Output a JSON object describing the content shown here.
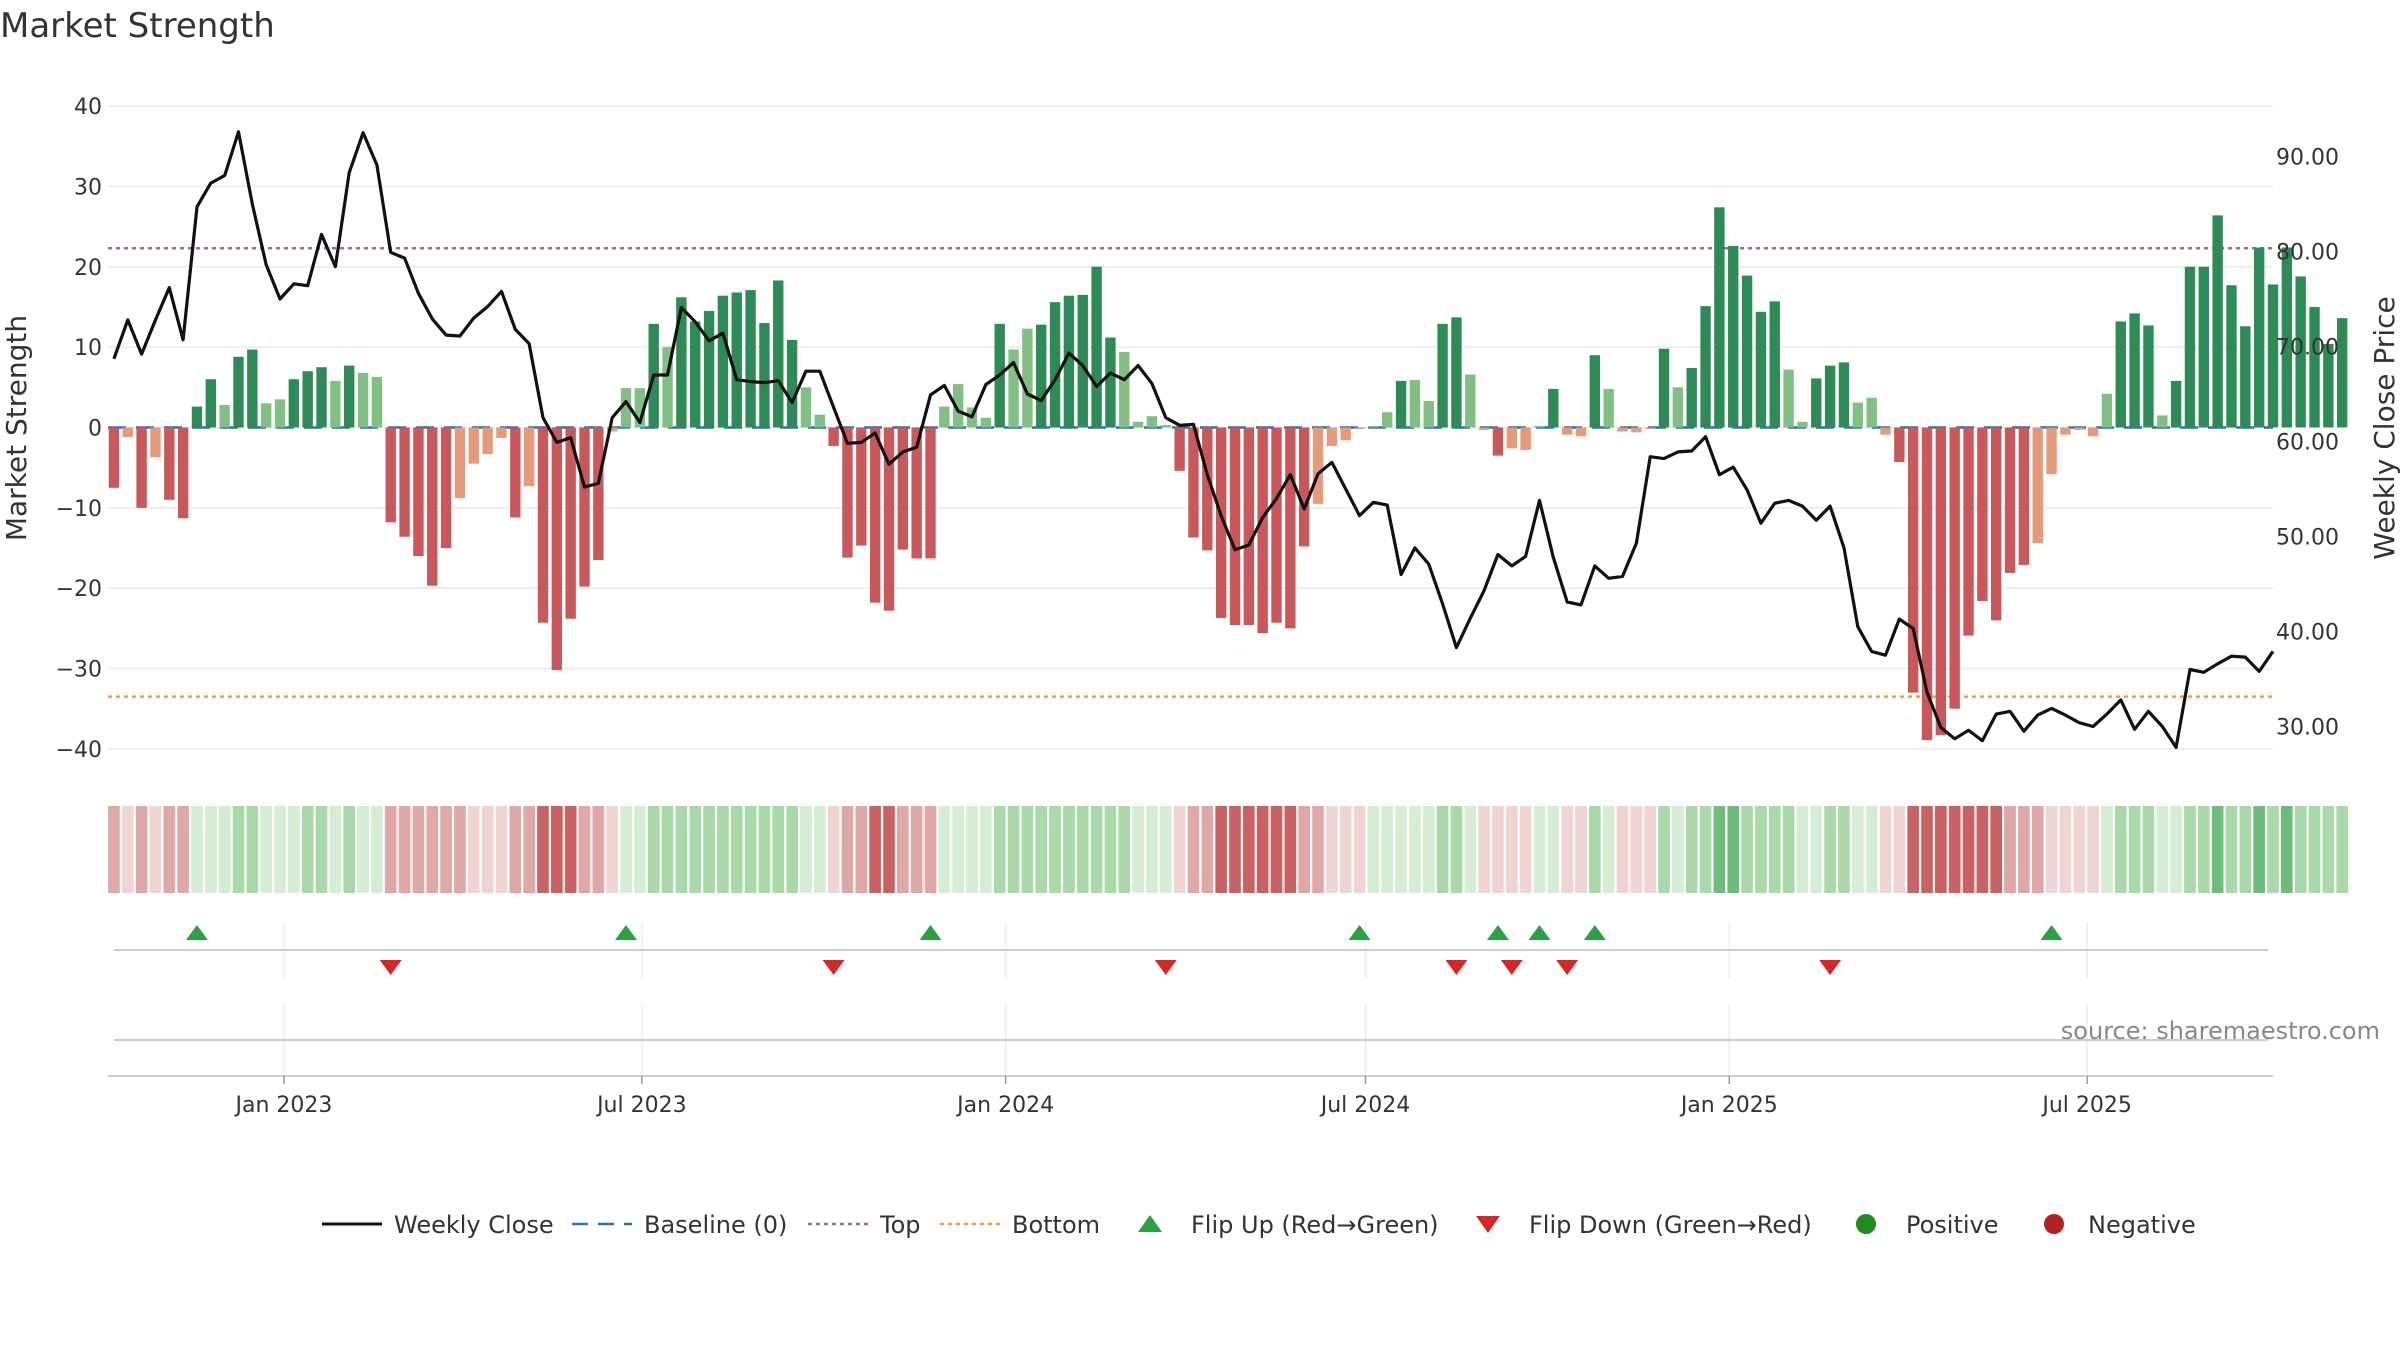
{
  "chart_data": {
    "type": "bar",
    "title": "Market Strength",
    "ylabel": "Market Strength",
    "y2label": "Weekly Close Price",
    "ylim": [
      -43,
      42
    ],
    "y2lim": [
      25.1,
      97.0
    ],
    "yticks": [
      "40",
      "30",
      "20",
      "10",
      "0",
      "−10",
      "−20",
      "−30",
      "−40"
    ],
    "y2ticks": [
      "90.00",
      "80.00",
      "70.00",
      "60.00",
      "50.00",
      "40.00",
      "30.00"
    ],
    "xticks": [
      "Jan 2023",
      "Jul 2023",
      "Jan 2024",
      "Jul 2024",
      "Jan 2025",
      "Jul 2025"
    ],
    "start_date": "2022-10-07",
    "x_end_date": "2025-10-03",
    "top_line": 22.3,
    "bottom_line": -33.5,
    "strength": [
      -7.5,
      -1.2,
      -10,
      -3.7,
      -9,
      -11.3,
      2.6,
      6,
      2.8,
      8.8,
      9.7,
      3,
      3.5,
      6,
      7,
      7.5,
      5.8,
      7.7,
      6.8,
      6.3,
      -11.8,
      -13.6,
      -16,
      -19.7,
      -15,
      -8.8,
      -4.5,
      -3.3,
      -1.3,
      -11.2,
      -7.3,
      -24.3,
      -30.2,
      -23.8,
      -19.8,
      -16.5,
      -0.5,
      4.9,
      4.9,
      12.9,
      10,
      16.2,
      13.2,
      14.5,
      16.4,
      16.8,
      17.1,
      13,
      18.3,
      10.9,
      5,
      1.6,
      -2.3,
      -16.2,
      -14.7,
      -21.8,
      -22.8,
      -15.2,
      -16.3,
      -16.3,
      2.6,
      5.4,
      2.5,
      1.2,
      12.9,
      9.7,
      12.3,
      12.8,
      15.6,
      16.4,
      16.5,
      20,
      11.2,
      9.4,
      0.7,
      1.4,
      0.3,
      -5.4,
      -13.7,
      -15.3,
      -23.7,
      -24.6,
      -24.6,
      -25.6,
      -24.3,
      -25,
      -14.8,
      -9.5,
      -2.3,
      -1.6,
      -0.2,
      0.2,
      1.9,
      5.8,
      5.9,
      3.3,
      12.9,
      13.7,
      6.6,
      -0.3,
      -3.5,
      -2.6,
      -2.8,
      0.2,
      4.8,
      -0.9,
      -1.1,
      9,
      4.8,
      -0.5,
      -0.6,
      -0.2,
      9.8,
      5,
      7.4,
      15.1,
      27.4,
      22.6,
      18.9,
      14.4,
      15.7,
      7.2,
      0.7,
      6.1,
      7.7,
      8.1,
      3.1,
      3.7,
      -0.9,
      -4.3,
      -33,
      -38.9,
      -38.3,
      -35,
      -25.9,
      -21.6,
      -24,
      -18.1,
      -17.1,
      -14.4,
      -5.8,
      -0.9,
      -0.3,
      -1.1,
      4.2,
      13.2,
      14.2,
      12.7,
      1.5,
      5.8,
      20,
      20,
      26.4,
      17.7,
      12.6,
      22.4,
      17.8,
      22.4,
      18.8,
      15,
      10.4,
      13.6
    ],
    "strength_intensity": [
      1,
      0,
      1,
      0,
      1,
      1,
      1,
      2,
      0,
      2,
      2,
      0,
      0,
      1,
      1,
      1,
      0,
      1,
      0,
      0,
      1,
      1,
      1,
      2,
      1,
      0,
      0,
      0,
      0,
      1,
      0,
      2,
      2,
      2,
      1,
      1,
      0,
      0,
      0,
      1,
      0,
      2,
      2,
      2,
      2,
      2,
      2,
      1,
      2,
      1,
      0,
      0,
      1,
      2,
      1,
      2,
      2,
      1,
      1,
      1,
      0,
      0,
      0,
      0,
      1,
      0,
      0,
      1,
      1,
      2,
      2,
      2,
      1,
      0,
      0,
      0,
      0,
      1,
      1,
      1,
      2,
      2,
      2,
      2,
      2,
      2,
      1,
      0,
      0,
      0,
      0,
      0,
      0,
      1,
      0,
      0,
      1,
      1,
      0,
      0,
      1,
      0,
      0,
      0,
      1,
      0,
      0,
      1,
      0,
      0,
      0,
      0,
      1,
      0,
      1,
      1,
      2,
      2,
      1,
      1,
      1,
      0,
      0,
      1,
      1,
      1,
      0,
      0,
      0,
      1,
      2,
      2,
      2,
      2,
      1,
      1,
      1,
      1,
      1,
      0,
      0,
      0,
      0,
      0,
      0,
      1,
      1,
      1,
      0,
      1,
      2,
      2,
      2,
      2,
      2,
      2,
      2,
      2,
      2,
      2,
      1,
      1
    ],
    "close": [
      68.7,
      72.8,
      69.2,
      72.8,
      76.2,
      70.7,
      84.7,
      87.2,
      88,
      92.6,
      85,
      78.6,
      75,
      76.6,
      76.4,
      81.8,
      78.4,
      88.3,
      92.5,
      89.1,
      79.9,
      79.3,
      75.6,
      72.9,
      71.2,
      71.1,
      73,
      74.2,
      75.8,
      71.8,
      70.3,
      62.5,
      59.9,
      60.4,
      55.2,
      55.6,
      62.5,
      64.2,
      62,
      67,
      67,
      74.1,
      72.6,
      70.6,
      71.4,
      66.5,
      66.3,
      66.2,
      66.4,
      64.1,
      67.4,
      67.4,
      63.6,
      59.8,
      59.9,
      60.9,
      57.6,
      58.9,
      59.4,
      64.9,
      65.9,
      63.2,
      62.6,
      66,
      67,
      68.3,
      65,
      64.3,
      66.5,
      69.3,
      68,
      65.8,
      67.2,
      66.5,
      68,
      66.1,
      62.5,
      61.7,
      61.8,
      56.5,
      52.2,
      48.6,
      49.1,
      52,
      54,
      56.5,
      52.9,
      56.6,
      57.8,
      55,
      52.2,
      53.6,
      53.3,
      46,
      48.8,
      47.1,
      42.9,
      38.3,
      41.4,
      44.3,
      48.1,
      46.9,
      47.9,
      53.8,
      47.8,
      43.1,
      42.8,
      46.9,
      45.6,
      45.8,
      49.3,
      58.4,
      58.2,
      58.9,
      59,
      60.5,
      56.5,
      57.3,
      54.9,
      51.4,
      53.5,
      53.8,
      53.2,
      51.7,
      53.2,
      48.8,
      40.5,
      37.9,
      37.5,
      41.3,
      40.3,
      33.6,
      29.9,
      28.7,
      29.6,
      28.5,
      31.3,
      31.6,
      29.5,
      31.2,
      31.9,
      31.2,
      30.4,
      30,
      31.3,
      32.8,
      29.7,
      31.6,
      30,
      27.8,
      36,
      35.7,
      36.6,
      37.4,
      37.3,
      35.8,
      37.9
    ],
    "flip_up_weeks": [
      6,
      37,
      59,
      90,
      100,
      103,
      107,
      140
    ],
    "flip_down_weeks": [
      20,
      52,
      76,
      97,
      101,
      105,
      124
    ],
    "legend": [
      "Weekly Close",
      "Baseline (0)",
      "Top",
      "Bottom",
      "Flip Up (Red→Green)",
      "Flip Down (Green→Red)",
      "Positive",
      "Negative"
    ],
    "legend_placement": "bottom-center",
    "source": "source: sharemaestro.com",
    "grid": true
  },
  "colors": {
    "pos_light": "#82bf82",
    "pos_dark": "#2e8b57",
    "neg_light": "#e39b7b",
    "neg_dark": "#c8585b",
    "close_line": "#111111",
    "baseline": "#1f77b4",
    "top_line": "#9467bd",
    "bottom_line": "#ff9933",
    "flip_up": "#2ca043",
    "flip_down": "#d62728",
    "positive_dot": "#228b22",
    "negative_dot": "#b22222",
    "grid": "#e9e9e9"
  }
}
